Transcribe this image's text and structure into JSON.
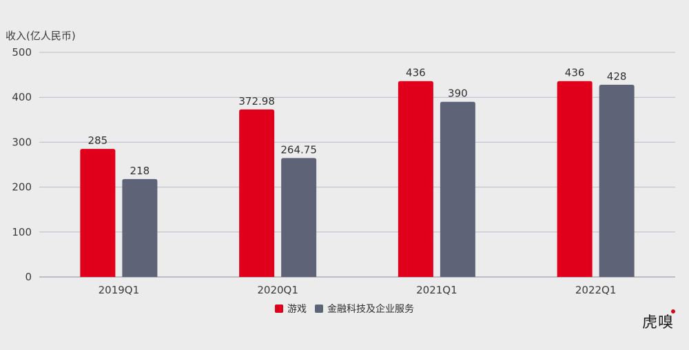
{
  "chart_data": {
    "type": "bar",
    "ylabel": "收入(亿人民币)",
    "ylim": [
      0,
      500
    ],
    "yticks": [
      0,
      100,
      200,
      300,
      400,
      500
    ],
    "categories": [
      "2019Q1",
      "2020Q1",
      "2021Q1",
      "2022Q1"
    ],
    "series": [
      {
        "name": "游戏",
        "color": "#e0001b",
        "values": [
          285,
          372.98,
          436,
          436
        ],
        "labels": [
          "285",
          "372.98",
          "436",
          "436"
        ]
      },
      {
        "name": "金融科技及企业服务",
        "color": "#5f6377",
        "values": [
          218,
          264.75,
          390,
          428
        ],
        "labels": [
          "218",
          "264.75",
          "390",
          "428"
        ]
      }
    ],
    "grid": true,
    "legend_position": "bottom"
  },
  "logo_text": "虎嗅"
}
